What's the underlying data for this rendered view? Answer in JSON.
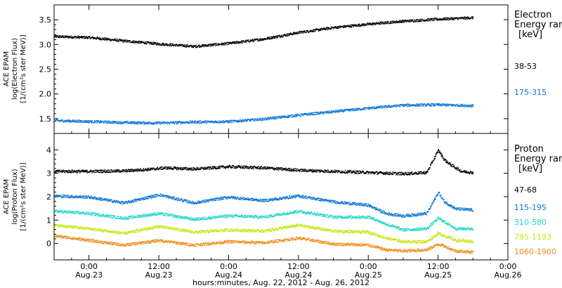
{
  "xaxis": {
    "label": "hours:minutes, Aug. 22, 2012 - Aug. 26, 2012",
    "ticks": [
      {
        "h": 6,
        "time": "0:00",
        "date": "Aug.23"
      },
      {
        "h": 18,
        "time": "12:00",
        "date": "Aug.23"
      },
      {
        "h": 30,
        "time": "0:00",
        "date": "Aug.24"
      },
      {
        "h": 42,
        "time": "12:00",
        "date": "Aug.24"
      },
      {
        "h": 54,
        "time": "0:00",
        "date": "Aug.25"
      },
      {
        "h": 66,
        "time": "12:00",
        "date": "Aug.25"
      },
      {
        "h": 78,
        "time": "0:00",
        "date": "Aug.26"
      }
    ]
  },
  "electron_panel": {
    "ylabel": [
      "ACE EPAM",
      "log(Electron Flux)",
      "[1/(cm²s ster MeV)]"
    ],
    "yticks": [
      "1.5",
      "2.0",
      "2.5",
      "3.0",
      "3.5"
    ],
    "ylim": [
      1.2,
      3.8
    ],
    "legend_title": [
      "Electron",
      "Energy ran",
      "[keV]"
    ]
  },
  "proton_panel": {
    "ylabel": [
      "ACE EPAM",
      "log(Proton Flux)",
      "[1/(cm²s ster MeV)]"
    ],
    "yticks": [
      "0",
      "1",
      "2",
      "3",
      "4"
    ],
    "ylim": [
      -0.7,
      4.7
    ],
    "legend_title": [
      "Proton",
      "Energy ran",
      "[keV]"
    ]
  },
  "chart_data": [
    {
      "type": "scatter",
      "panel": "electron",
      "x_unit": "hours since Aug. 22, 2012 0:00",
      "xlim": [
        0,
        78
      ],
      "ylim": [
        1.2,
        3.8
      ],
      "series": [
        {
          "name": "38-53",
          "color": "#000000",
          "x": [
            0,
            6,
            12,
            18,
            24,
            30,
            36,
            42,
            48,
            54,
            60,
            66,
            72
          ],
          "y": [
            3.17,
            3.15,
            3.08,
            3.02,
            2.97,
            3.03,
            3.12,
            3.25,
            3.35,
            3.42,
            3.48,
            3.52,
            3.55
          ]
        },
        {
          "name": "175-315",
          "color": "#0a74d6",
          "x": [
            0,
            6,
            12,
            18,
            24,
            30,
            36,
            42,
            48,
            54,
            60,
            66,
            72
          ],
          "y": [
            1.47,
            1.45,
            1.43,
            1.42,
            1.44,
            1.45,
            1.5,
            1.58,
            1.65,
            1.72,
            1.78,
            1.79,
            1.77
          ]
        }
      ]
    },
    {
      "type": "scatter",
      "panel": "proton",
      "x_unit": "hours since Aug. 22, 2012 0:00",
      "xlim": [
        0,
        78
      ],
      "ylim": [
        -0.7,
        4.7
      ],
      "series": [
        {
          "name": "47-68",
          "color": "#000000",
          "x": [
            0,
            6,
            12,
            17,
            19,
            24,
            30,
            36,
            42,
            48,
            54,
            60,
            64,
            66,
            67,
            68,
            70,
            72
          ],
          "y": [
            3.1,
            3.1,
            3.12,
            3.2,
            3.25,
            3.2,
            3.3,
            3.25,
            3.15,
            3.1,
            3.05,
            3.0,
            3.05,
            4.0,
            3.6,
            3.4,
            3.1,
            3.05
          ]
        },
        {
          "name": "115-195",
          "color": "#0a74d6",
          "x": [
            0,
            6,
            12,
            18,
            24,
            30,
            36,
            42,
            48,
            54,
            57,
            60,
            64,
            66,
            67,
            69,
            72
          ],
          "y": [
            2.05,
            2.0,
            1.75,
            2.1,
            1.75,
            2.0,
            1.85,
            2.05,
            1.8,
            1.65,
            1.3,
            1.2,
            1.3,
            2.2,
            1.8,
            1.5,
            1.45
          ]
        },
        {
          "name": "310-580",
          "color": "#20d8c8",
          "x": [
            0,
            6,
            12,
            18,
            24,
            30,
            36,
            42,
            48,
            54,
            57,
            60,
            64,
            66,
            69,
            72
          ],
          "y": [
            1.4,
            1.3,
            1.1,
            1.3,
            1.05,
            1.2,
            1.15,
            1.4,
            1.15,
            1.15,
            0.85,
            0.6,
            0.65,
            1.1,
            0.65,
            0.65
          ]
        },
        {
          "name": "795-1193",
          "color": "#c8e614",
          "x": [
            0,
            6,
            12,
            18,
            24,
            30,
            36,
            42,
            48,
            54,
            57,
            60,
            64,
            66,
            69,
            72
          ],
          "y": [
            0.8,
            0.65,
            0.45,
            0.75,
            0.5,
            0.6,
            0.55,
            0.8,
            0.55,
            0.5,
            0.25,
            0.1,
            0.1,
            0.45,
            0.15,
            0.1
          ]
        },
        {
          "name": "1060-1900",
          "color": "#ee8e1a",
          "x": [
            0,
            6,
            12,
            18,
            24,
            30,
            36,
            42,
            48,
            54,
            57,
            60,
            64,
            66,
            69,
            72
          ],
          "y": [
            0.35,
            0.15,
            -0.05,
            0.15,
            -0.05,
            0.1,
            0.05,
            0.25,
            0.0,
            -0.05,
            -0.25,
            -0.3,
            -0.25,
            0.0,
            -0.3,
            -0.35
          ]
        }
      ]
    }
  ]
}
